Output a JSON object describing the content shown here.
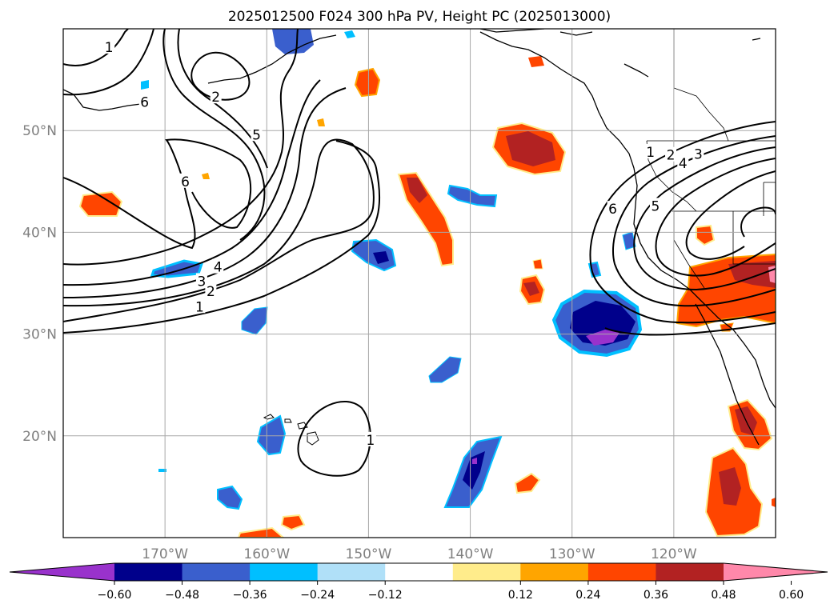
{
  "title": "2025012500 F024 300 hPa PV, Height PC (2025013000)",
  "map": {
    "projection": "lat-lon",
    "lon_range": [
      -180,
      -110
    ],
    "lat_range": [
      10,
      60
    ],
    "grid": true,
    "lat_ticks": [
      {
        "value": 50,
        "label": "50°N"
      },
      {
        "value": 40,
        "label": "40°N"
      },
      {
        "value": 30,
        "label": "30°N"
      },
      {
        "value": 20,
        "label": "20°N"
      }
    ],
    "lon_ticks": [
      {
        "value": -170,
        "label": "170°W"
      },
      {
        "value": -160,
        "label": "160°W"
      },
      {
        "value": -150,
        "label": "150°W"
      },
      {
        "value": -140,
        "label": "140°W"
      },
      {
        "value": -130,
        "label": "130°W"
      },
      {
        "value": -120,
        "label": "120°W"
      }
    ],
    "contour_labels": [
      {
        "text": "1",
        "lon": -175.5,
        "lat": 58.2
      },
      {
        "text": "6",
        "lon": -172,
        "lat": 52.8
      },
      {
        "text": "2",
        "lon": -165,
        "lat": 53.3
      },
      {
        "text": "5",
        "lon": -161,
        "lat": 49.6
      },
      {
        "text": "6",
        "lon": -168,
        "lat": 45.0
      },
      {
        "text": "4",
        "lon": -164.8,
        "lat": 36.6
      },
      {
        "text": "3",
        "lon": -166.4,
        "lat": 35.2
      },
      {
        "text": "2",
        "lon": -165.5,
        "lat": 34.2
      },
      {
        "text": "1",
        "lon": -166.6,
        "lat": 32.7
      },
      {
        "text": "1",
        "lon": -149.8,
        "lat": 19.6
      },
      {
        "text": "1",
        "lon": -122.3,
        "lat": 47.9
      },
      {
        "text": "2",
        "lon": -120.3,
        "lat": 47.6
      },
      {
        "text": "3",
        "lon": -117.6,
        "lat": 47.7
      },
      {
        "text": "4",
        "lon": -119.1,
        "lat": 46.8
      },
      {
        "text": "5",
        "lon": -121.8,
        "lat": 42.6
      },
      {
        "text": "6",
        "lon": -126.0,
        "lat": 42.3
      }
    ]
  },
  "colorbar": {
    "colors": [
      "#9932cc",
      "#00008b",
      "#3a5fcd",
      "#00bfff",
      "#b0e0f8",
      "#ffffff",
      "#ffec8b",
      "#ffa500",
      "#ff4500",
      "#b22222",
      "#ff88aa"
    ],
    "ticks": [
      "−0.60",
      "−0.48",
      "−0.36",
      "−0.24",
      "−0.12",
      "0.12",
      "0.24",
      "0.36",
      "0.48",
      "0.60"
    ]
  }
}
